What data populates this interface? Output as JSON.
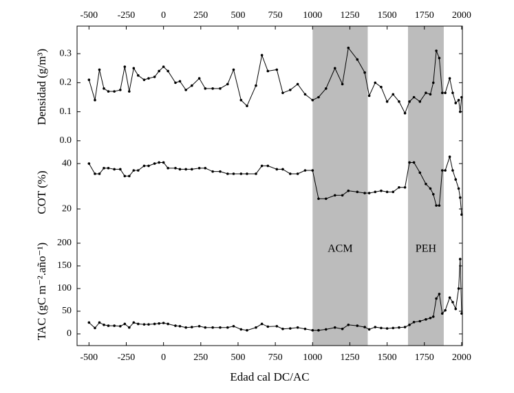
{
  "chart_data": [
    {
      "type": "line",
      "ylabel": "Densidad (g/m³)",
      "xlabel": "Edad cal DC/AC",
      "xlim": [
        -580,
        2005
      ],
      "xticks": [
        -500,
        -250,
        0,
        250,
        500,
        750,
        1000,
        1250,
        1500,
        1750,
        2000
      ],
      "ylim": [
        -0.024,
        0.395
      ],
      "yticks": [
        {
          "value": 0,
          "label": "0.0"
        },
        0.1,
        0.2,
        0.3
      ],
      "shaded": [
        {
          "label": "ACM",
          "range": [
            1000,
            1370
          ]
        },
        {
          "label": "PEH",
          "range": [
            1640,
            1880
          ]
        }
      ],
      "series": [
        {
          "color": "#000000",
          "x": [
            -500,
            -460,
            -430,
            -400,
            -370,
            -330,
            -290,
            -260,
            -230,
            -200,
            -170,
            -130,
            -100,
            -60,
            -30,
            0,
            30,
            80,
            110,
            150,
            190,
            240,
            280,
            330,
            380,
            430,
            470,
            520,
            560,
            620,
            660,
            700,
            760,
            800,
            850,
            900,
            950,
            1000,
            1040,
            1090,
            1150,
            1200,
            1240,
            1300,
            1350,
            1380,
            1420,
            1460,
            1500,
            1540,
            1580,
            1620,
            1650,
            1680,
            1720,
            1760,
            1790,
            1810,
            1830,
            1850,
            1870,
            1890,
            1920,
            1940,
            1960,
            1980,
            1990,
            2000
          ],
          "values": [
            0.21,
            0.14,
            0.245,
            0.18,
            0.17,
            0.17,
            0.175,
            0.255,
            0.17,
            0.25,
            0.225,
            0.21,
            0.215,
            0.22,
            0.24,
            0.255,
            0.24,
            0.2,
            0.205,
            0.175,
            0.19,
            0.215,
            0.18,
            0.18,
            0.18,
            0.195,
            0.245,
            0.14,
            0.12,
            0.19,
            0.295,
            0.24,
            0.245,
            0.165,
            0.175,
            0.195,
            0.16,
            0.14,
            0.15,
            0.18,
            0.25,
            0.195,
            0.32,
            0.28,
            0.235,
            0.155,
            0.2,
            0.185,
            0.135,
            0.16,
            0.135,
            0.095,
            0.135,
            0.15,
            0.135,
            0.165,
            0.16,
            0.2,
            0.31,
            0.285,
            0.165,
            0.165,
            0.215,
            0.165,
            0.13,
            0.14,
            0.1,
            0.15
          ]
        }
      ]
    },
    {
      "type": "line",
      "ylabel": "COT (%)",
      "ylim": [
        7.6,
        47
      ],
      "yticks": [
        20,
        40
      ],
      "series": [
        {
          "color": "#000000",
          "x": [
            -500,
            -460,
            -430,
            -400,
            -370,
            -330,
            -290,
            -260,
            -230,
            -200,
            -170,
            -130,
            -100,
            -60,
            -30,
            0,
            30,
            80,
            110,
            150,
            190,
            240,
            280,
            330,
            380,
            430,
            470,
            520,
            560,
            620,
            660,
            700,
            760,
            800,
            850,
            900,
            950,
            1000,
            1040,
            1090,
            1150,
            1200,
            1240,
            1300,
            1350,
            1380,
            1420,
            1460,
            1500,
            1540,
            1580,
            1620,
            1650,
            1680,
            1720,
            1760,
            1790,
            1810,
            1830,
            1850,
            1870,
            1890,
            1920,
            1940,
            1960,
            1980,
            1990,
            2000
          ],
          "values": [
            40,
            35.5,
            35.5,
            38,
            38,
            37.5,
            37.5,
            34.5,
            34.5,
            37,
            37,
            39,
            39,
            40,
            40.5,
            40.5,
            38,
            38,
            37.5,
            37.5,
            37.5,
            38,
            38,
            36.5,
            36.5,
            35.5,
            35.5,
            35.5,
            35.5,
            35.5,
            39,
            39,
            37.5,
            37.5,
            35.5,
            35.5,
            37,
            37,
            24.5,
            24.5,
            26,
            26,
            28,
            27.5,
            27,
            27,
            27.5,
            28,
            27.5,
            27.5,
            29.5,
            29.5,
            40.5,
            40.5,
            36,
            31,
            29,
            26.5,
            21.5,
            21.5,
            37,
            37,
            43,
            37,
            33,
            29,
            25,
            17.5
          ]
        }
      ]
    },
    {
      "type": "line",
      "ylabel": "TAC (gC m⁻².año⁻¹)",
      "ylim": [
        -25.8,
        213.6
      ],
      "yticks": [
        0,
        50,
        100,
        150,
        200
      ],
      "series": [
        {
          "color": "#000000",
          "x": [
            -500,
            -460,
            -430,
            -400,
            -370,
            -330,
            -290,
            -260,
            -230,
            -200,
            -170,
            -130,
            -100,
            -60,
            -30,
            0,
            30,
            80,
            110,
            150,
            190,
            240,
            280,
            330,
            380,
            430,
            470,
            520,
            560,
            620,
            660,
            700,
            760,
            800,
            850,
            900,
            950,
            1000,
            1040,
            1090,
            1150,
            1200,
            1240,
            1300,
            1350,
            1380,
            1420,
            1460,
            1500,
            1540,
            1580,
            1620,
            1650,
            1680,
            1720,
            1760,
            1790,
            1810,
            1830,
            1850,
            1870,
            1890,
            1920,
            1940,
            1960,
            1980,
            1990,
            2000
          ],
          "values": [
            25,
            13,
            25,
            20,
            18,
            18,
            17,
            22,
            14,
            25,
            22,
            21,
            21,
            22,
            23,
            24,
            22,
            18,
            17,
            14,
            15,
            17,
            14,
            14,
            14,
            14,
            17,
            10,
            8,
            14,
            22,
            16,
            17,
            11,
            12,
            14,
            11,
            8,
            8,
            10,
            14,
            11,
            20,
            18,
            15,
            10,
            15,
            13,
            12,
            13,
            14,
            15,
            20,
            26,
            28,
            32,
            35,
            38,
            78,
            88,
            45,
            52,
            80,
            70,
            55,
            100,
            165,
            45
          ]
        }
      ]
    }
  ]
}
